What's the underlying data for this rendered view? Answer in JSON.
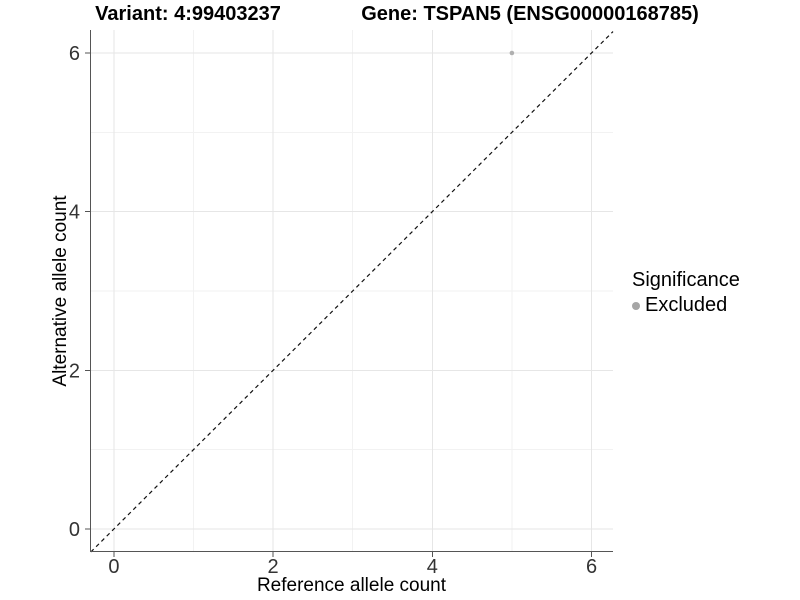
{
  "header": {
    "variant_title": "Variant: 4:99403237",
    "gene_title": "Gene: TSPAN5 (ENSG00000168785)"
  },
  "axes": {
    "x_title": "Reference allele count",
    "y_title": "Alternative allele count"
  },
  "legend": {
    "title": "Significance",
    "items": [
      {
        "label": "Excluded",
        "color": "#a6a6a6"
      }
    ]
  },
  "colors": {
    "background": "#ffffff",
    "grid_major": "#e6e6e6",
    "grid_minor": "#f2f2f2",
    "axis_line": "#555555",
    "tick_label": "#333333",
    "reference_line": "#111111"
  },
  "chart_data": {
    "type": "scatter",
    "title": "Variant: 4:99403237 | Gene: TSPAN5 (ENSG00000168785)",
    "xlabel": "Reference allele count",
    "ylabel": "Alternative allele count",
    "xlim": [
      -0.3,
      6.27
    ],
    "ylim": [
      -0.29,
      6.29
    ],
    "x_ticks": [
      0,
      2,
      4,
      6
    ],
    "y_ticks": [
      0,
      2,
      4,
      6
    ],
    "x_minor_ticks": [
      1,
      3,
      5
    ],
    "y_minor_ticks": [
      1,
      3,
      5
    ],
    "grid": true,
    "legend_position": "right",
    "series": [
      {
        "name": "Excluded",
        "color": "#b0b0b0",
        "points": [
          {
            "x": 5,
            "y": 6
          }
        ]
      }
    ],
    "reference_line": {
      "style": "dashed",
      "slope": 1,
      "intercept": 0
    }
  }
}
